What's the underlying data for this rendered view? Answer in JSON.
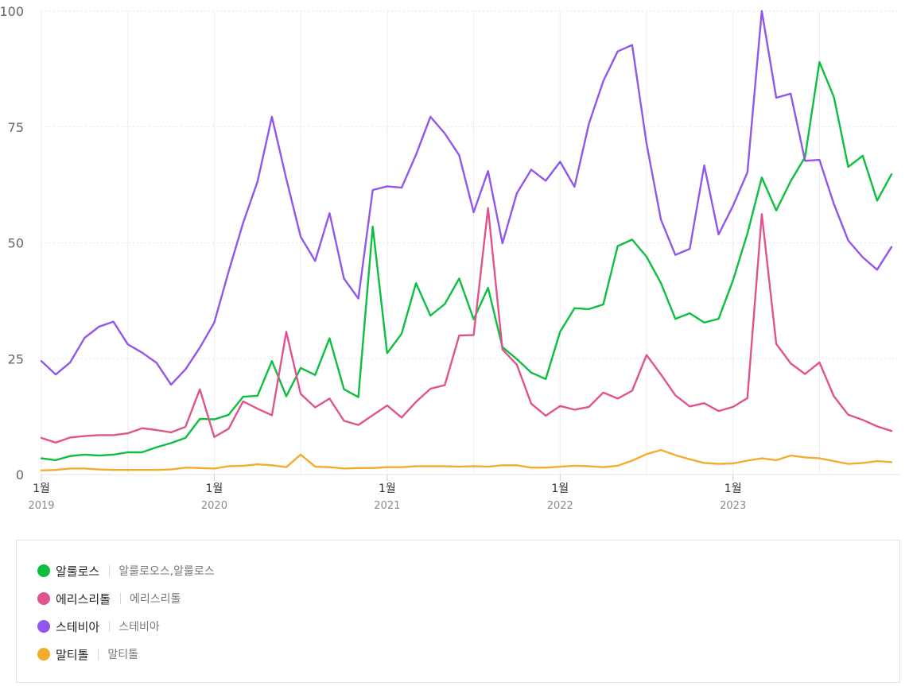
{
  "chart_data": {
    "type": "line",
    "ylim": [
      0,
      100
    ],
    "yticks": [
      "0",
      "25",
      "50",
      "75",
      "100"
    ],
    "x_start_month": "2019-01",
    "x_ticks": [
      {
        "month": "1월",
        "year": "2019",
        "index": 0
      },
      {
        "month": "1월",
        "year": "2020",
        "index": 12
      },
      {
        "month": "1월",
        "year": "2021",
        "index": 24
      },
      {
        "month": "1월",
        "year": "2022",
        "index": 36
      },
      {
        "month": "1월",
        "year": "2023",
        "index": 48
      }
    ],
    "series": [
      {
        "name": "알룰로스",
        "terms": "알룰로오스,알룰로스",
        "color": "#0dbf3f",
        "values": [
          3.5,
          3.1,
          4.0,
          4.3,
          4.1,
          4.3,
          4.8,
          4.8,
          5.9,
          6.8,
          7.9,
          12.0,
          11.9,
          12.9,
          16.8,
          17.0,
          24.5,
          16.9,
          23.0,
          21.5,
          29.4,
          18.4,
          16.7,
          53.5,
          26.2,
          30.4,
          41.3,
          34.3,
          36.8,
          42.3,
          33.5,
          40.3,
          27.5,
          24.9,
          22.0,
          20.6,
          30.8,
          35.9,
          35.7,
          36.7,
          49.3,
          50.7,
          47.0,
          41.3,
          33.6,
          34.8,
          32.8,
          33.6,
          41.9,
          52.0,
          64.1,
          57.0,
          63.3,
          68.5,
          89.0,
          81.5,
          66.4,
          68.8,
          59.1,
          64.8
        ]
      },
      {
        "name": "에리스리톨",
        "terms": "에리스리톨",
        "color": "#e0538f",
        "values": [
          7.9,
          6.9,
          8.0,
          8.3,
          8.5,
          8.5,
          8.9,
          10.0,
          9.6,
          9.1,
          10.3,
          18.4,
          8.1,
          9.9,
          15.8,
          14.2,
          12.8,
          30.8,
          17.4,
          14.5,
          16.4,
          11.6,
          10.7,
          12.8,
          14.9,
          12.3,
          15.7,
          18.5,
          19.3,
          30.0,
          30.1,
          57.5,
          27.0,
          23.7,
          15.3,
          12.7,
          14.8,
          14.0,
          14.6,
          17.7,
          16.4,
          18.1,
          25.8,
          21.6,
          17.1,
          14.7,
          15.4,
          13.7,
          14.6,
          16.5,
          56.2,
          28.2,
          24.0,
          21.7,
          24.2,
          16.9,
          12.9,
          11.8,
          10.4,
          9.4
        ]
      },
      {
        "name": "스테비아",
        "terms": "스테비아",
        "color": "#9156ec",
        "values": [
          24.5,
          21.6,
          24.2,
          29.5,
          31.9,
          33.0,
          28.1,
          26.3,
          24.1,
          19.4,
          22.7,
          27.4,
          32.8,
          43.8,
          54.3,
          63.2,
          77.2,
          63.8,
          51.3,
          46.1,
          56.4,
          42.3,
          38.0,
          61.4,
          62.2,
          61.9,
          69.0,
          77.2,
          73.6,
          68.9,
          56.6,
          65.5,
          49.9,
          60.7,
          65.8,
          63.4,
          67.5,
          62.1,
          75.7,
          84.9,
          91.3,
          92.7,
          71.4,
          55.0,
          47.4,
          48.7,
          66.7,
          51.8,
          58.0,
          65.2,
          100,
          81.3,
          82.2,
          67.7,
          67.9,
          58.4,
          50.5,
          46.9,
          44.2,
          49.1
        ]
      },
      {
        "name": "말티톨",
        "terms": "말티톨",
        "color": "#f2ad2e",
        "values": [
          0.9,
          1.0,
          1.3,
          1.3,
          1.1,
          1.0,
          1.0,
          1.0,
          1.0,
          1.1,
          1.5,
          1.4,
          1.3,
          1.8,
          1.9,
          2.2,
          2.0,
          1.6,
          4.3,
          1.7,
          1.6,
          1.3,
          1.4,
          1.4,
          1.6,
          1.6,
          1.8,
          1.8,
          1.8,
          1.7,
          1.8,
          1.7,
          2.0,
          2.0,
          1.5,
          1.5,
          1.7,
          1.9,
          1.8,
          1.6,
          1.9,
          3.0,
          4.4,
          5.3,
          4.2,
          3.3,
          2.5,
          2.3,
          2.4,
          3.0,
          3.5,
          3.1,
          4.1,
          3.7,
          3.5,
          2.9,
          2.3,
          2.5,
          2.9,
          2.7
        ]
      }
    ]
  }
}
